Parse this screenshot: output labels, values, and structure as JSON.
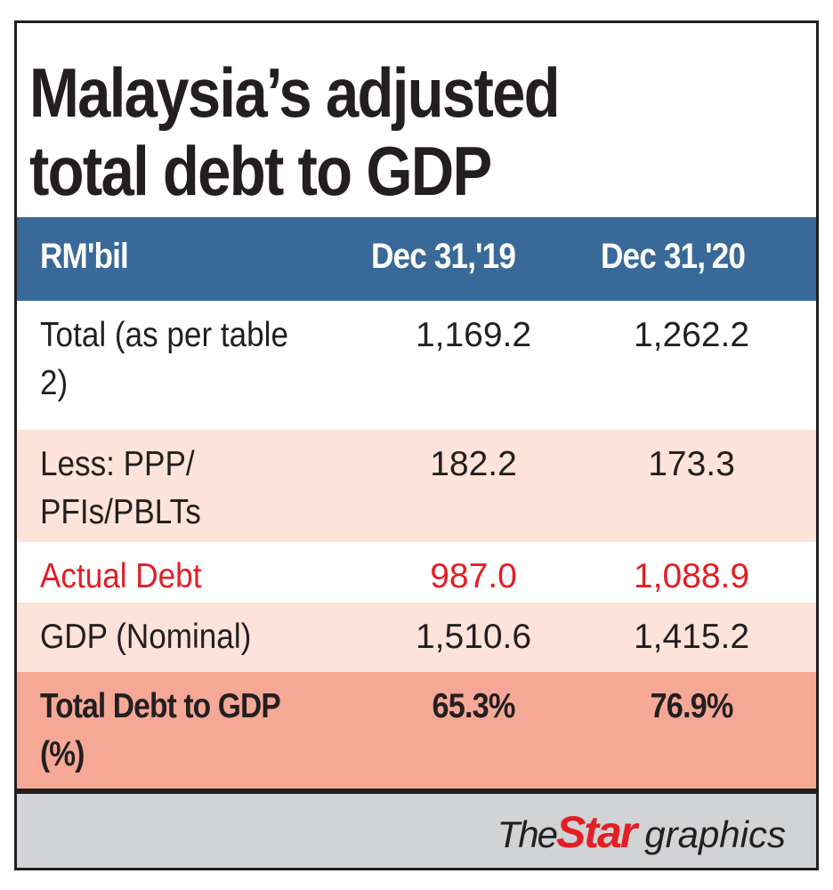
{
  "title": {
    "line1": "Malaysia’s adjusted",
    "line2": "total debt to GDP"
  },
  "table": {
    "headers": [
      "RM'bil",
      "Dec 31,'19",
      "Dec 31,'20"
    ],
    "rows": [
      {
        "label": "Total (as per table 2)",
        "v1": "1,169.2",
        "v2": "1,262.2"
      },
      {
        "label": "Less: PPP/ PFIs/PBLTs",
        "v1": "182.2",
        "v2": "173.3"
      },
      {
        "label": "Actual Debt",
        "v1": "987.0",
        "v2": "1,088.9"
      },
      {
        "label": "GDP (Nominal)",
        "v1": "1,510.6",
        "v2": "1,415.2"
      },
      {
        "label": "Total Debt to GDP (%)",
        "v1": "65.3%",
        "v2": "76.9%"
      }
    ]
  },
  "footer": {
    "brand_the": "The",
    "brand_star": "Star",
    "brand_graphics": "graphics"
  },
  "colors": {
    "header_blue": "#386998",
    "row_peach": "#fde3d9",
    "row_salmon": "#f6a897",
    "highlight_red": "#e31e25",
    "footer_grey": "#d1d3d4",
    "text_dark": "#231f20"
  }
}
